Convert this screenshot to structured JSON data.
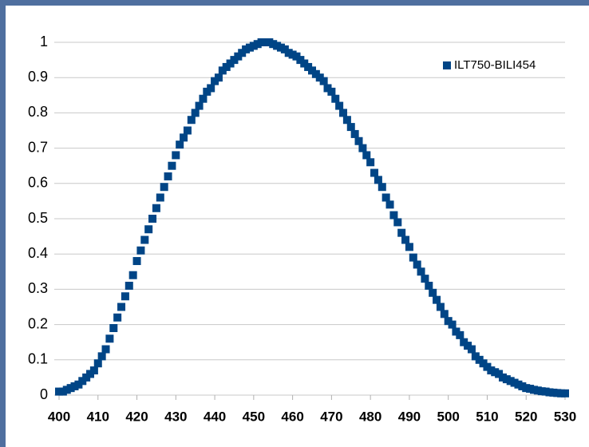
{
  "chart_data": {
    "type": "scatter",
    "x": [
      400,
      401,
      402,
      403,
      404,
      405,
      406,
      407,
      408,
      409,
      410,
      411,
      412,
      413,
      414,
      415,
      416,
      417,
      418,
      419,
      420,
      421,
      422,
      423,
      424,
      425,
      426,
      427,
      428,
      429,
      430,
      431,
      432,
      433,
      434,
      435,
      436,
      437,
      438,
      439,
      440,
      441,
      442,
      443,
      444,
      445,
      446,
      447,
      448,
      449,
      450,
      451,
      452,
      453,
      454,
      455,
      456,
      457,
      458,
      459,
      460,
      461,
      462,
      463,
      464,
      465,
      466,
      467,
      468,
      469,
      470,
      471,
      472,
      473,
      474,
      475,
      476,
      477,
      478,
      479,
      480,
      481,
      482,
      483,
      484,
      485,
      486,
      487,
      488,
      489,
      490,
      491,
      492,
      493,
      494,
      495,
      496,
      497,
      498,
      499,
      500,
      501,
      502,
      503,
      504,
      505,
      506,
      507,
      508,
      509,
      510,
      511,
      512,
      513,
      514,
      515,
      516,
      517,
      518,
      519,
      520,
      521,
      522,
      523,
      524,
      525,
      526,
      527,
      528,
      529,
      530
    ],
    "series": [
      {
        "name": "ILT750-BILI454",
        "color": "#004586",
        "values": [
          0.01,
          0.01,
          0.015,
          0.02,
          0.025,
          0.03,
          0.04,
          0.05,
          0.06,
          0.07,
          0.09,
          0.11,
          0.13,
          0.16,
          0.19,
          0.22,
          0.25,
          0.28,
          0.31,
          0.34,
          0.38,
          0.41,
          0.44,
          0.47,
          0.5,
          0.53,
          0.56,
          0.59,
          0.62,
          0.65,
          0.68,
          0.71,
          0.73,
          0.75,
          0.78,
          0.8,
          0.82,
          0.84,
          0.86,
          0.87,
          0.89,
          0.9,
          0.92,
          0.93,
          0.94,
          0.95,
          0.96,
          0.97,
          0.98,
          0.985,
          0.99,
          0.995,
          1,
          1,
          1,
          0.995,
          0.99,
          0.985,
          0.98,
          0.97,
          0.965,
          0.96,
          0.95,
          0.94,
          0.93,
          0.92,
          0.91,
          0.9,
          0.89,
          0.87,
          0.86,
          0.84,
          0.82,
          0.8,
          0.78,
          0.76,
          0.74,
          0.72,
          0.7,
          0.68,
          0.66,
          0.63,
          0.61,
          0.59,
          0.56,
          0.54,
          0.51,
          0.49,
          0.46,
          0.44,
          0.42,
          0.39,
          0.37,
          0.35,
          0.33,
          0.31,
          0.29,
          0.27,
          0.25,
          0.23,
          0.21,
          0.2,
          0.18,
          0.17,
          0.15,
          0.14,
          0.13,
          0.11,
          0.1,
          0.09,
          0.08,
          0.07,
          0.065,
          0.06,
          0.05,
          0.045,
          0.04,
          0.035,
          0.03,
          0.025,
          0.02,
          0.018,
          0.015,
          0.013,
          0.011,
          0.01,
          0.008,
          0.007,
          0.006,
          0.005,
          0.005
        ]
      }
    ],
    "xlim": [
      400,
      530
    ],
    "xticks": [
      400,
      410,
      420,
      430,
      440,
      450,
      460,
      470,
      480,
      490,
      500,
      510,
      520,
      530
    ],
    "ylim": [
      0,
      1
    ],
    "yticks": [
      0,
      0.1,
      0.2,
      0.3,
      0.4,
      0.5,
      0.6,
      0.7,
      0.8,
      0.9,
      1
    ],
    "grid": true,
    "legend": "top-right"
  }
}
